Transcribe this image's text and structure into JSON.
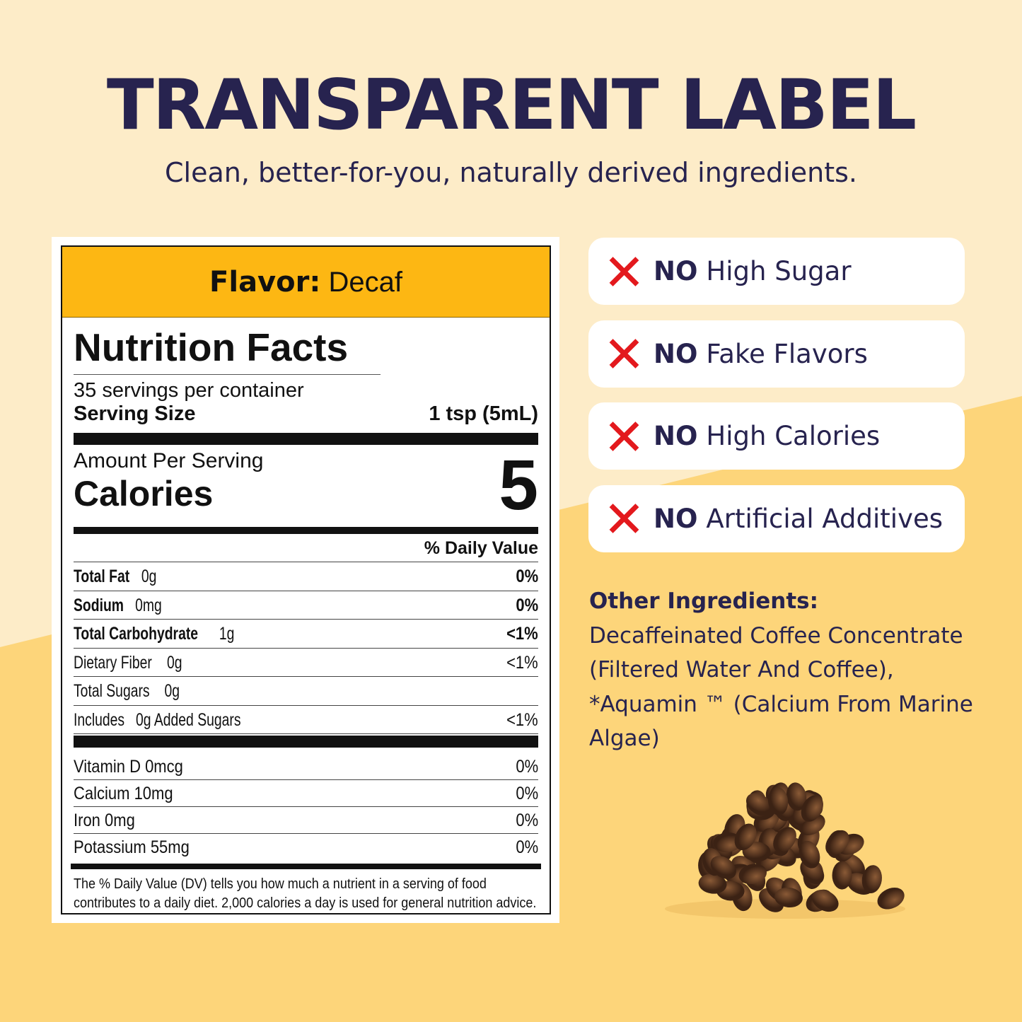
{
  "header": {
    "title": "TRANSPARENT LABEL",
    "subtitle": "Clean, better-for-you, naturally derived ingredients."
  },
  "label": {
    "flavor_label": "Flavor:",
    "flavor_value": "Decaf",
    "title": "Nutrition Facts",
    "servings": "35 servings per container",
    "serving_size_label": "Serving Size",
    "serving_size_value": "1 tsp (5mL)",
    "amount_per_serving": "Amount Per Serving",
    "calories_label": "Calories",
    "calories_value": "5",
    "dv_header": "% Daily Value",
    "nutrients": [
      {
        "name": "Total Fat",
        "amount": "0g",
        "dv": "0%",
        "bold": true
      },
      {
        "name": "Sodium",
        "amount": "0mg",
        "dv": "0%",
        "bold": true
      },
      {
        "name": "Total Carbohydrate",
        "amount": "1g",
        "dv": "<1%",
        "bold": true
      },
      {
        "name": "Dietary Fiber",
        "amount": "0g",
        "dv": "<1%",
        "bold": false
      },
      {
        "name": "Total Sugars",
        "amount": "0g",
        "dv": "",
        "bold": false
      },
      {
        "name": "Includes",
        "amount": "0g Added Sugars",
        "dv": "<1%",
        "bold": false
      }
    ],
    "vitamins": [
      {
        "name": "Vitamin D 0mcg",
        "dv": "0%"
      },
      {
        "name": "Calcium 10mg",
        "dv": "0%"
      },
      {
        "name": "Iron 0mg",
        "dv": "0%"
      },
      {
        "name": "Potassium 55mg",
        "dv": "0%"
      }
    ],
    "footnote": "The % Daily Value (DV) tells you how much a nutrient in a serving of food contributes to a daily diet. 2,000 calories a day is used for general nutrition advice."
  },
  "claims": [
    {
      "icon": "x-icon",
      "prefix": "NO",
      "text": "High Sugar"
    },
    {
      "icon": "x-icon",
      "prefix": "NO",
      "text": "Fake Flavors"
    },
    {
      "icon": "x-icon",
      "prefix": "NO",
      "text": "High Calories"
    },
    {
      "icon": "x-icon",
      "prefix": "NO",
      "text": "Artificial Additives"
    }
  ],
  "other_ingredients": {
    "title": "Other Ingredients:",
    "text": "Decaffeinated Coffee Concentrate (Filtered Water And Coffee), *Aquamin ™ (Calcium From Marine Algae)"
  },
  "colors": {
    "navy": "#27234f",
    "flavor_bar": "#fdb713",
    "x_red": "#e3191d",
    "bg_light": "#fdecc8",
    "bg_dark": "#fdd57a"
  }
}
